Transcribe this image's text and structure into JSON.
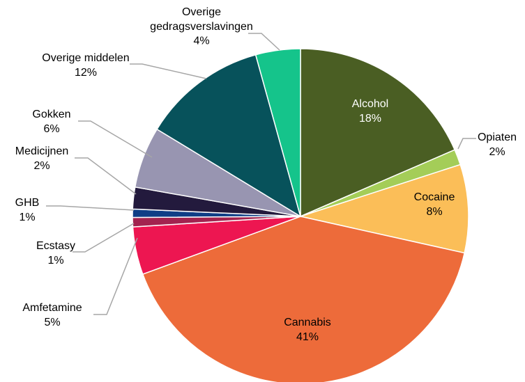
{
  "chart_data": {
    "type": "pie",
    "title": "",
    "legend": "none",
    "slices": [
      {
        "label": "Alcohol",
        "value_label": "18%",
        "value": 18.5,
        "color": "#4a5e23",
        "text_color": "#ffffff",
        "label_position": "inside"
      },
      {
        "label": "Opiaten",
        "value_label": "2%",
        "value": 1.5,
        "color": "#a4cd58",
        "text_color": "#000000",
        "label_position": "outside"
      },
      {
        "label": "Cocaine",
        "value_label": "8%",
        "value": 8.5,
        "color": "#fbbe58",
        "text_color": "#000000",
        "label_position": "inside"
      },
      {
        "label": "Cannabis",
        "value_label": "41%",
        "value": 40.9,
        "color": "#ed6b3a",
        "text_color": "#000000",
        "label_position": "inside"
      },
      {
        "label": "Amfetamine",
        "value_label": "5%",
        "value": 4.6,
        "color": "#ed1651",
        "text_color": "#000000",
        "label_position": "outside"
      },
      {
        "label": "Ecstasy",
        "value_label": "1%",
        "value": 0.9,
        "color": "#a3234f",
        "text_color": "#000000",
        "label_position": "outside"
      },
      {
        "label": "GHB",
        "value_label": "1%",
        "value": 0.8,
        "color": "#0f3e86",
        "text_color": "#000000",
        "label_position": "outside"
      },
      {
        "label": "Medicijnen",
        "value_label": "2%",
        "value": 2.1,
        "color": "#231a3d",
        "text_color": "#000000",
        "label_position": "outside"
      },
      {
        "label": "Gokken",
        "value_label": "6%",
        "value": 5.9,
        "color": "#9895b1",
        "text_color": "#000000",
        "label_position": "outside"
      },
      {
        "label": "Overige middelen",
        "value_label": "12%",
        "value": 12.0,
        "color": "#07525b",
        "text_color": "#000000",
        "label_position": "outside"
      },
      {
        "label": "Overige gedragsverslavingen",
        "label_lines": [
          "Overige",
          "gedragsverslavingen"
        ],
        "value_label": "4%",
        "value": 4.3,
        "color": "#15c48b",
        "text_color": "#000000",
        "label_position": "outside"
      }
    ]
  }
}
